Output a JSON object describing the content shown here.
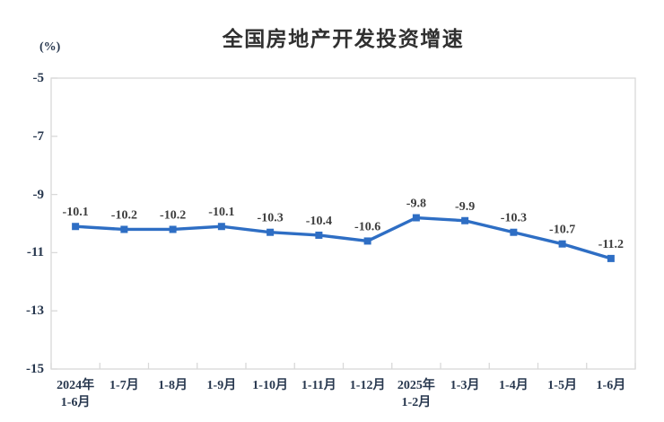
{
  "chart_data": {
    "type": "line",
    "title": "全国房地产开发投资增速",
    "ylabel": "(%)",
    "xlabel": "",
    "categories": [
      "2024年\n1-6月",
      "1-7月",
      "1-8月",
      "1-9月",
      "1-10月",
      "1-11月",
      "1-12月",
      "2025年\n1-2月",
      "1-3月",
      "1-4月",
      "1-5月",
      "1-6月"
    ],
    "values": [
      -10.1,
      -10.2,
      -10.2,
      -10.1,
      -10.3,
      -10.4,
      -10.6,
      -9.8,
      -9.9,
      -10.3,
      -10.7,
      -11.2
    ],
    "yticks": [
      -5,
      -7,
      -9,
      -11,
      -13,
      -15
    ],
    "ylim": [
      -15,
      -5
    ],
    "grid": false,
    "legend": "none",
    "data_labels": true,
    "series_color": "#2e6ec4",
    "axis_color": "#d9d9d9",
    "data_label_color": "#3d3d3d",
    "tick_label_color": "#27374e",
    "title_color": "#303030"
  }
}
